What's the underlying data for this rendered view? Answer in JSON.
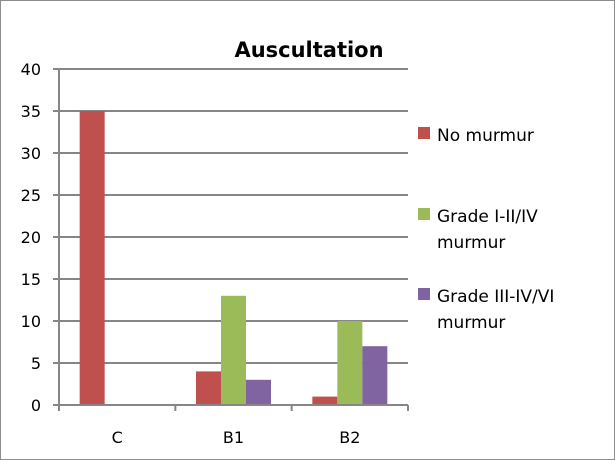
{
  "chart_data": {
    "type": "bar",
    "title": "Auscultation",
    "xlabel": "",
    "ylabel": "",
    "categories": [
      "C",
      "B1",
      "B2"
    ],
    "ylim": [
      0,
      40
    ],
    "yticks": [
      0,
      5,
      10,
      15,
      20,
      25,
      30,
      35,
      40
    ],
    "grid": true,
    "legend_position": "right",
    "series": [
      {
        "name_lines": [
          "No murmur"
        ],
        "color": "#c0504d",
        "values": [
          35,
          4,
          1
        ]
      },
      {
        "name_lines": [
          "Grade I-II/IV",
          "murmur"
        ],
        "color": "#9bbb59",
        "values": [
          0,
          13,
          10
        ]
      },
      {
        "name_lines": [
          "Grade III-IV/VI",
          "murmur"
        ],
        "color": "#8064a2",
        "values": [
          0,
          3,
          7
        ]
      }
    ]
  }
}
